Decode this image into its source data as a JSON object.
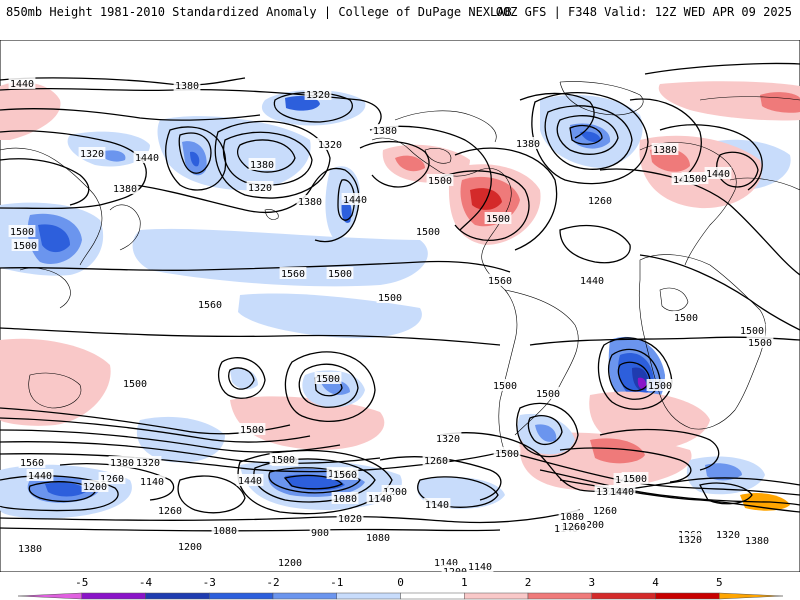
{
  "header": {
    "left": "850mb Height 1981-2010 Standardized Anomaly | College of DuPage NEXLAB",
    "right": "00Z GFS | F348 Valid: 12Z WED APR 09 2025"
  },
  "colorbar": {
    "ticks": [
      "-5",
      "-4",
      "-3",
      "-2",
      "-1",
      "0",
      "1",
      "2",
      "3",
      "4",
      "5"
    ],
    "colors": [
      "#e060e0",
      "#8a14c8",
      "#1f3cb0",
      "#2d5fdc",
      "#6b95ee",
      "#c8dcfb",
      "#ffffff",
      "#f9c8c8",
      "#ef7a7a",
      "#d42a2a",
      "#c80000",
      "#ffa500"
    ]
  },
  "map": {
    "anomaly_colors": {
      "neg1": "#c8dcfb",
      "neg2": "#6b95ee",
      "neg3": "#2d5fdc",
      "neg4": "#1f3cb0",
      "neg5": "#8a14c8",
      "pos1": "#f9c8c8",
      "pos2": "#ef7a7a",
      "pos3": "#d42a2a"
    },
    "height_labels": [
      "1440",
      "1380",
      "1320",
      "1380",
      "1320",
      "1440",
      "1380",
      "1320",
      "1380",
      "1440",
      "1500",
      "1500",
      "1500",
      "1440",
      "1380",
      "1500",
      "1560",
      "1500",
      "1500",
      "1560",
      "1320",
      "1260",
      "1380",
      "1440",
      "1500",
      "1440",
      "1560",
      "1500",
      "1500",
      "1500",
      "1500",
      "1500",
      "1500",
      "1500",
      "1500",
      "1500",
      "1560",
      "1380",
      "1320",
      "1440",
      "1260",
      "1200",
      "1140",
      "1500",
      "1560",
      "1440",
      "1320",
      "1260",
      "1200",
      "1140",
      "1080",
      "1260",
      "1200",
      "1080",
      "1380",
      "1020",
      "900",
      "1080",
      "1140",
      "1200",
      "1140",
      "1140",
      "1200",
      "1500",
      "1440",
      "1320",
      "1260",
      "1200",
      "1140",
      "1080",
      "1260",
      "1320",
      "1380",
      "1500",
      "1560",
      "1500",
      "1500",
      "1440",
      "1380",
      "1260",
      "1320"
    ]
  }
}
